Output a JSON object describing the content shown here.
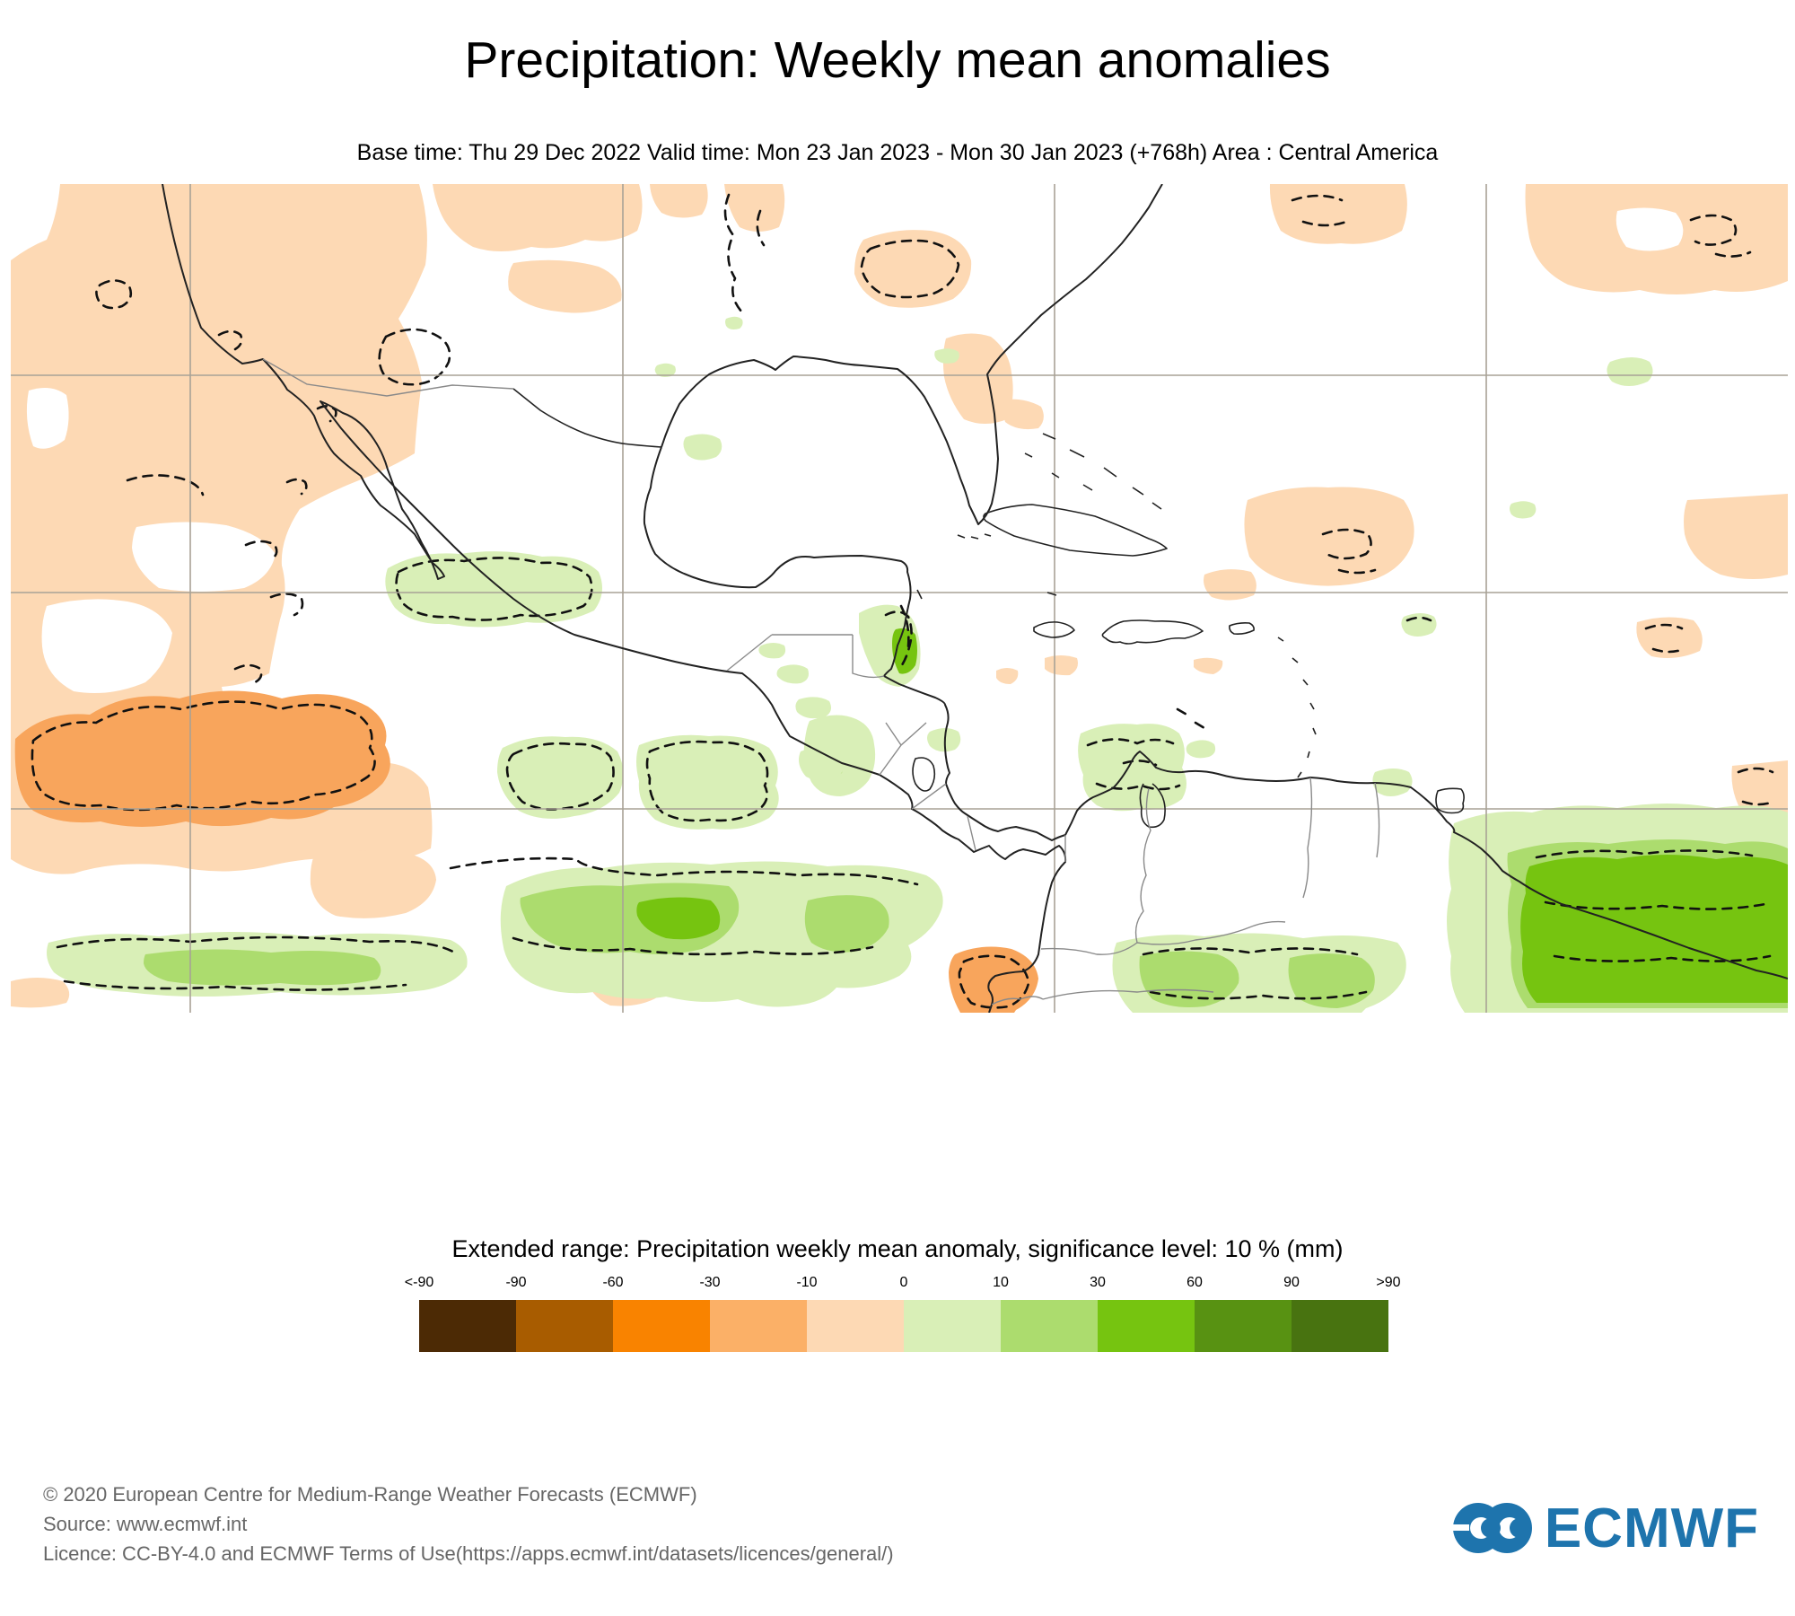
{
  "header": {
    "title": "Precipitation: Weekly mean anomalies",
    "subtitle": "Base time: Thu 29 Dec 2022 Valid time: Mon 23 Jan 2023 - Mon 30 Jan 2023 (+768h) Area : Central America"
  },
  "legend": {
    "title": "Extended range: Precipitation weekly mean anomaly, significance level: 10 % (mm)",
    "tick_labels": [
      "<-90",
      "-90",
      "-60",
      "-30",
      "-10",
      "0",
      "10",
      "30",
      "60",
      "90",
      ">90"
    ],
    "colors": [
      "#4C2A05",
      "#A85C00",
      "#F98300",
      "#FBB067",
      "#FDD9B4",
      "#D9EFB7",
      "#ACDC6E",
      "#76C410",
      "#589212",
      "#487310"
    ],
    "units": "mm"
  },
  "map": {
    "region": "Central America",
    "shading_meaning": "precipitation weekly mean anomaly (orange = drier, green = wetter); dashed contours = 10% significance"
  },
  "palette": {
    "peach": "#FDD9B4",
    "orange": "#F8A55C",
    "green-pale": "#D9EFB7",
    "green-light": "#ACDC6E",
    "green-bright": "#76C410",
    "grid": "#A8A296",
    "coast": "#222222",
    "border": "#8A8A8A",
    "contour": "#111111",
    "logo-blue": "#1E74AD",
    "footer-gray": "#666666"
  },
  "footer": {
    "line1": "© 2020 European Centre for Medium-Range Weather Forecasts (ECMWF)",
    "line2": "Source: www.ecmwf.int",
    "line3": "Licence: CC-BY-4.0 and ECMWF Terms of Use(https://apps.ecmwf.int/datasets/licences/general/)",
    "logo_text": "ECMWF"
  }
}
